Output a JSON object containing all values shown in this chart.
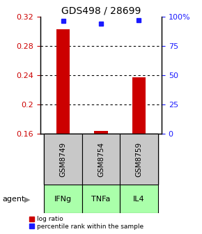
{
  "title": "GDS498 / 28699",
  "samples": [
    "GSM8749",
    "GSM8754",
    "GSM8759"
  ],
  "agents": [
    "IFNg",
    "TNFa",
    "IL4"
  ],
  "x_positions": [
    0,
    1,
    2
  ],
  "bar_values": [
    0.302,
    0.163,
    0.237
  ],
  "pct_data": [
    96,
    94,
    97
  ],
  "bar_color": "#cc0000",
  "percentile_color": "#1a1aff",
  "ylim_left": [
    0.16,
    0.32
  ],
  "ylim_right": [
    0,
    100
  ],
  "yticks_left": [
    0.16,
    0.2,
    0.24,
    0.28,
    0.32
  ],
  "yticks_right": [
    0,
    25,
    50,
    75,
    100
  ],
  "ytick_labels_left": [
    "0.16",
    "0.2",
    "0.24",
    "0.28",
    "0.32"
  ],
  "ytick_labels_right": [
    "0",
    "25",
    "50",
    "75",
    "100%"
  ],
  "sample_box_color": "#c8c8c8",
  "agent_box_color": "#aaffaa",
  "agent_label": "agent",
  "legend_log_ratio": "log ratio",
  "legend_percentile": "percentile rank within the sample",
  "bar_width": 0.35
}
